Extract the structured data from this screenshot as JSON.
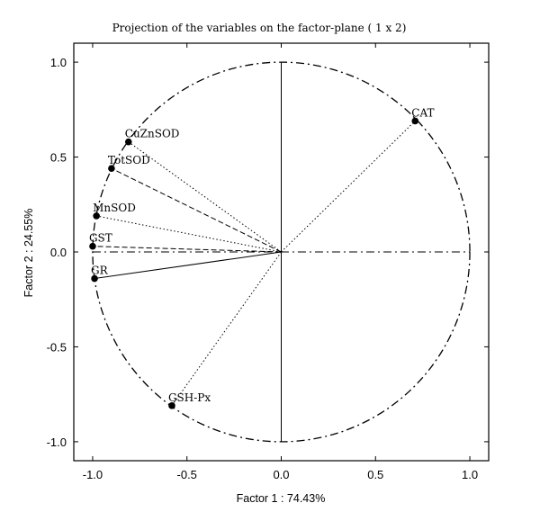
{
  "chart_data": {
    "type": "scatter",
    "title": "Projection of the variables on the factor-plane (  1 x   2)",
    "xlabel": "Factor 1 : 74.43%",
    "ylabel": "Factor 2 : 24.55%",
    "xlim": [
      -1.1,
      1.1
    ],
    "ylim": [
      -1.1,
      1.1
    ],
    "xticks": [
      -1.0,
      -0.5,
      0.0,
      0.5,
      1.0
    ],
    "yticks": [
      -1.0,
      -0.5,
      0.0,
      0.5,
      1.0
    ],
    "xtick_labels": [
      "-1.0",
      "-0.5",
      "0.0",
      "0.5",
      "1.0"
    ],
    "ytick_labels": [
      "-1.0",
      "-0.5",
      "0.0",
      "0.5",
      "1.0"
    ],
    "grid": false,
    "unit_circle": true,
    "points": [
      {
        "label": "CAT",
        "x": 0.71,
        "y": 0.69,
        "style": "dotted"
      },
      {
        "label": "CuZnSOD",
        "x": -0.81,
        "y": 0.58,
        "style": "dotted"
      },
      {
        "label": "TotSOD",
        "x": -0.9,
        "y": 0.44,
        "style": "dashed"
      },
      {
        "label": "MnSOD",
        "x": -0.98,
        "y": 0.19,
        "style": "dotted"
      },
      {
        "label": "GST",
        "x": -1.0,
        "y": 0.03,
        "style": "dashed"
      },
      {
        "label": "GR",
        "x": -0.99,
        "y": -0.14,
        "style": "solid"
      },
      {
        "label": "GSH-Px",
        "x": -0.58,
        "y": -0.81,
        "style": "dotted"
      }
    ]
  }
}
